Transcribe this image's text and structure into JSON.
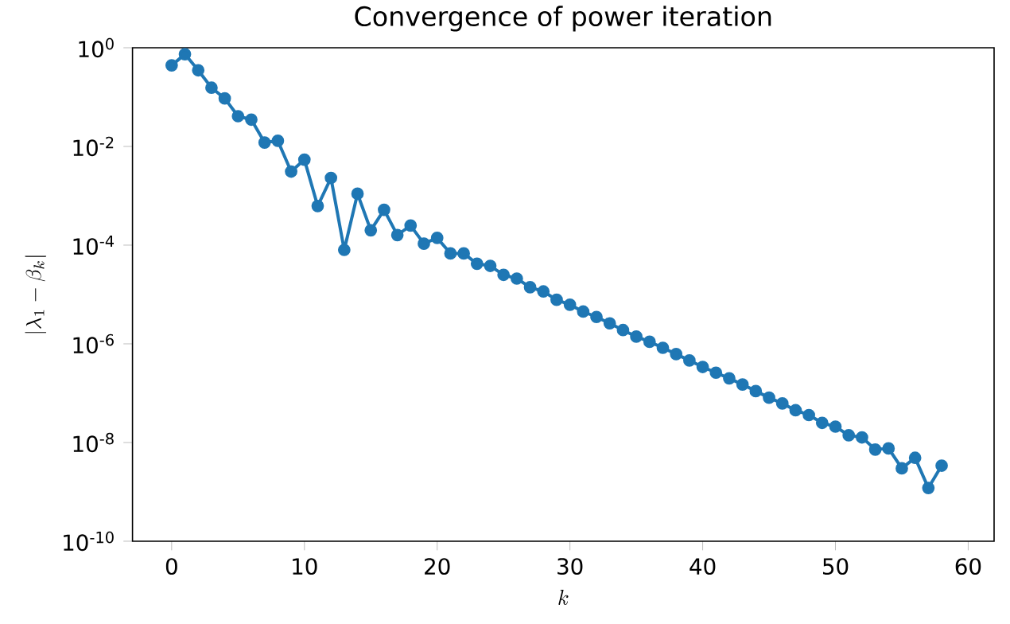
{
  "chart_data": {
    "type": "line",
    "title": "Convergence of power iteration",
    "xlabel": "k",
    "ylabel": "|\\lambda_1 - \\beta_k|",
    "x": [
      0,
      1,
      2,
      3,
      4,
      5,
      6,
      7,
      8,
      9,
      10,
      11,
      12,
      13,
      14,
      15,
      16,
      17,
      18,
      19,
      20,
      21,
      22,
      23,
      24,
      25,
      26,
      27,
      28,
      29,
      30,
      31,
      32,
      33,
      34,
      35,
      36,
      37,
      38,
      39,
      40,
      41,
      42,
      43,
      44,
      45,
      46,
      47,
      48,
      49,
      50,
      51,
      52,
      53,
      54,
      55,
      56,
      57,
      58
    ],
    "series": [
      {
        "color": "#1f77b4",
        "values": [
          0.44,
          0.74,
          0.35,
          0.155,
          0.094,
          0.041,
          0.035,
          0.012,
          0.013,
          0.0031,
          0.0054,
          0.00062,
          0.0023,
          8e-05,
          0.0011,
          0.0002,
          0.00052,
          0.00016,
          0.00025,
          0.000107,
          0.00014,
          6.8e-05,
          6.8e-05,
          4.2e-05,
          3.8e-05,
          2.5e-05,
          2.1e-05,
          1.4e-05,
          1.15e-05,
          7.8e-06,
          6.2e-06,
          4.5e-06,
          3.5e-06,
          2.6e-06,
          1.9e-06,
          1.4e-06,
          1.1e-06,
          8.3e-07,
          6.2e-07,
          4.6e-07,
          3.4e-07,
          2.6e-07,
          2e-07,
          1.5e-07,
          1.1e-07,
          8.1e-08,
          6.2e-08,
          4.5e-08,
          3.6e-08,
          2.5e-08,
          2.1e-08,
          1.4e-08,
          1.27e-08,
          7.2e-09,
          7.6e-09,
          3e-09,
          4.9e-09,
          1.2e-09,
          3.4e-09
        ]
      }
    ],
    "log": "y",
    "marker": "circle",
    "line_style": "solid",
    "grid": false,
    "xlim": [
      -2.95,
      61.95
    ],
    "xticks": [
      0,
      10,
      20,
      30,
      40,
      50,
      60
    ],
    "ylim": [
      1e-10,
      1
    ],
    "yticks": [
      {
        "value": 1e-10,
        "label": "10$^{-10}$"
      },
      {
        "value": 1e-08,
        "label": "10$^{-8}$"
      },
      {
        "value": 1e-06,
        "label": "10$^{-6}$"
      },
      {
        "value": 0.0001,
        "label": "10$^{-4}$"
      },
      {
        "value": 0.01,
        "label": "10$^{-2}$"
      },
      {
        "value": 1,
        "label": "10$^{0}$"
      }
    ]
  }
}
